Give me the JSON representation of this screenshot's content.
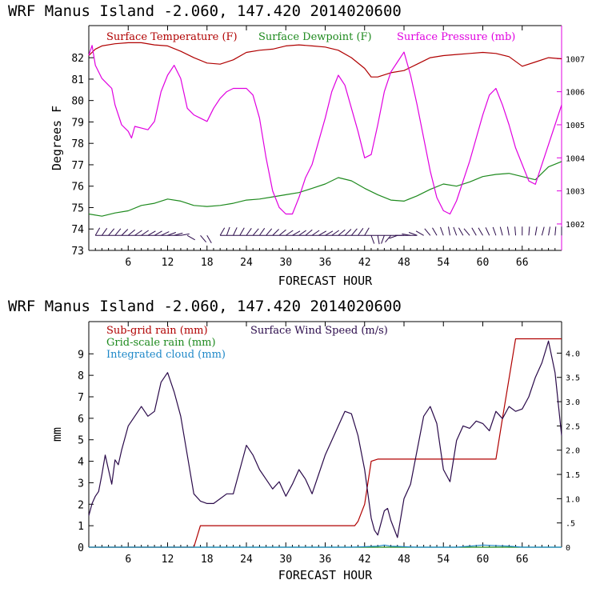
{
  "chart_data": [
    {
      "type": "line",
      "title": "WRF   Manus Island  -2.060, 147.420  2014020600",
      "xlabel": "FORECAST HOUR",
      "ylabel": "Degrees F",
      "xlim": [
        0,
        72
      ],
      "xticks": [
        6,
        12,
        18,
        24,
        30,
        36,
        42,
        48,
        54,
        60,
        66
      ],
      "ylim": [
        73,
        83.5
      ],
      "yticks": [
        73,
        74,
        75,
        76,
        77,
        78,
        79,
        80,
        81,
        82
      ],
      "y2lim": [
        1001.2,
        1008.0
      ],
      "y2ticks": [
        1002,
        1003,
        1004,
        1005,
        1006,
        1007
      ],
      "colors": {
        "temperature": "#b00000",
        "dewpoint": "#1e8a1e",
        "pressure": "#e000e0",
        "wind": "#2a0a4a"
      },
      "series": [
        {
          "name": "Surface Temperature (F)",
          "axis": "left",
          "x": [
            0,
            1,
            2,
            4,
            6,
            8,
            10,
            12,
            14,
            16,
            18,
            20,
            22,
            24,
            26,
            28,
            30,
            32,
            34,
            36,
            38,
            40,
            42,
            43,
            44,
            46,
            48,
            50,
            52,
            54,
            56,
            58,
            60,
            62,
            64,
            66,
            68,
            70,
            72
          ],
          "y": [
            82.1,
            82.4,
            82.55,
            82.65,
            82.7,
            82.7,
            82.6,
            82.55,
            82.3,
            82.0,
            81.75,
            81.7,
            81.9,
            82.25,
            82.35,
            82.4,
            82.55,
            82.6,
            82.55,
            82.5,
            82.35,
            82.0,
            81.5,
            81.1,
            81.1,
            81.3,
            81.4,
            81.7,
            82.0,
            82.1,
            82.15,
            82.2,
            82.25,
            82.2,
            82.05,
            81.6,
            81.8,
            82.0,
            81.95
          ]
        },
        {
          "name": "Surface Dewpoint (F)",
          "axis": "left",
          "x": [
            0,
            2,
            4,
            6,
            8,
            10,
            12,
            14,
            16,
            18,
            20,
            22,
            24,
            26,
            28,
            30,
            32,
            34,
            36,
            38,
            40,
            42,
            44,
            46,
            48,
            50,
            52,
            54,
            56,
            58,
            60,
            62,
            64,
            66,
            68,
            70,
            72
          ],
          "y": [
            74.7,
            74.6,
            74.75,
            74.85,
            75.1,
            75.2,
            75.4,
            75.3,
            75.1,
            75.05,
            75.1,
            75.2,
            75.35,
            75.4,
            75.5,
            75.6,
            75.7,
            75.9,
            76.1,
            76.4,
            76.25,
            75.9,
            75.6,
            75.35,
            75.3,
            75.55,
            75.85,
            76.1,
            76.0,
            76.2,
            76.45,
            76.55,
            76.6,
            76.45,
            76.3,
            76.9,
            77.15
          ]
        },
        {
          "name": "Surface Pressure (mb)",
          "axis": "right",
          "x": [
            0,
            0.5,
            1,
            2,
            3,
            3.5,
            4,
            5,
            6,
            6.5,
            7,
            8,
            9,
            10,
            11,
            12,
            13,
            14,
            15,
            16,
            17,
            18,
            19,
            20,
            21,
            22,
            24,
            25,
            26,
            27,
            28,
            29,
            30,
            31,
            32,
            33,
            34,
            35,
            36,
            37,
            38,
            39,
            40,
            41,
            42,
            43,
            44,
            45,
            46,
            47,
            48,
            49,
            50,
            51,
            52,
            53,
            54,
            55,
            56,
            57,
            58,
            59,
            60,
            61,
            62,
            63,
            64,
            65,
            66,
            67,
            68,
            69,
            70,
            71,
            72
          ],
          "y": [
            1007.1,
            1007.4,
            1006.8,
            1006.4,
            1006.2,
            1006.1,
            1005.6,
            1005.0,
            1004.8,
            1004.6,
            1004.95,
            1004.9,
            1004.85,
            1005.1,
            1006.0,
            1006.5,
            1006.8,
            1006.4,
            1005.5,
            1005.3,
            1005.2,
            1005.1,
            1005.5,
            1005.8,
            1006.0,
            1006.1,
            1006.1,
            1005.9,
            1005.2,
            1004.0,
            1003.0,
            1002.5,
            1002.3,
            1002.3,
            1002.8,
            1003.4,
            1003.8,
            1004.5,
            1005.2,
            1006.0,
            1006.5,
            1006.2,
            1005.5,
            1004.8,
            1004.0,
            1004.1,
            1005.0,
            1006.0,
            1006.6,
            1006.9,
            1007.2,
            1006.5,
            1005.6,
            1004.6,
            1003.6,
            1002.8,
            1002.4,
            1002.3,
            1002.7,
            1003.3,
            1003.9,
            1004.6,
            1005.3,
            1005.9,
            1006.1,
            1005.6,
            1005.0,
            1004.3,
            1003.8,
            1003.3,
            1003.2,
            1003.8,
            1004.4,
            1005.0,
            1005.6
          ]
        }
      ],
      "wind_barbs": {
        "x": [
          1,
          2,
          3,
          4,
          5,
          6,
          7,
          8,
          9,
          10,
          11,
          12,
          13,
          14,
          15,
          17,
          18,
          20,
          21,
          22,
          23,
          24,
          25,
          26,
          27,
          28,
          29,
          30,
          31,
          32,
          33,
          34,
          35,
          36,
          37,
          38,
          39,
          40,
          41,
          42,
          43,
          44,
          45,
          46,
          47,
          48,
          49,
          50,
          51,
          52,
          53,
          54,
          55,
          56,
          57,
          58,
          59,
          60,
          61,
          62,
          63,
          64,
          65,
          66,
          67,
          68,
          69,
          70,
          71,
          72
        ],
        "dir": [
          30,
          35,
          40,
          40,
          45,
          50,
          55,
          55,
          60,
          60,
          65,
          70,
          75,
          80,
          120,
          140,
          150,
          30,
          20,
          25,
          30,
          35,
          40,
          35,
          40,
          45,
          50,
          55,
          60,
          55,
          50,
          55,
          60,
          60,
          55,
          50,
          45,
          40,
          35,
          30,
          160,
          170,
          200,
          220,
          250,
          270,
          280,
          290,
          300,
          320,
          330,
          340,
          350,
          340,
          330,
          320,
          330,
          330,
          335,
          340,
          345,
          350,
          355,
          0,
          5,
          10,
          15,
          10,
          5,
          0
        ]
      }
    },
    {
      "type": "line",
      "title": "WRF   Manus Island  -2.060, 147.420  2014020600",
      "xlabel": "FORECAST HOUR",
      "ylabel": "mm",
      "xlim": [
        0,
        72
      ],
      "xticks": [
        6,
        12,
        18,
        24,
        30,
        36,
        42,
        48,
        54,
        60,
        66
      ],
      "ylim": [
        0,
        10.5
      ],
      "yticks": [
        0,
        1,
        2,
        3,
        4,
        5,
        6,
        7,
        8,
        9
      ],
      "y2lim": [
        0,
        4.65
      ],
      "y2ticks": [
        0,
        0.5,
        1.0,
        1.5,
        2.0,
        2.5,
        3.0,
        3.5,
        4.0
      ],
      "y2ticklabels": [
        "0",
        ".5",
        "1.0",
        "1.5",
        "2.0",
        "2.5",
        "3.0",
        "3.5",
        "4.0"
      ],
      "colors": {
        "subgrid": "#b00000",
        "gridscale": "#1e8a1e",
        "cloud": "#1e88c8",
        "wind": "#2a0a4a"
      },
      "series": [
        {
          "name": "Sub-grid rain (mm)",
          "axis": "left",
          "x": [
            0,
            16,
            17,
            40.5,
            41,
            42,
            43,
            44,
            48,
            62,
            63,
            65,
            69,
            70,
            72
          ],
          "y": [
            0,
            0,
            1.0,
            1.0,
            1.2,
            2.0,
            4.0,
            4.1,
            4.1,
            4.1,
            6.0,
            9.7,
            9.7,
            9.7,
            9.7
          ]
        },
        {
          "name": "Grid-scale rain (mm)",
          "axis": "left",
          "x": [
            0,
            72
          ],
          "y": [
            0.0,
            0.0
          ]
        },
        {
          "name": "Integrated cloud (mm)",
          "axis": "left",
          "x": [
            0,
            10,
            20,
            30,
            40,
            44,
            45,
            46,
            50,
            56,
            58,
            60,
            64,
            66,
            72
          ],
          "y": [
            0.0,
            0.0,
            0.0,
            0.0,
            0.0,
            0.05,
            0.1,
            0.05,
            0.0,
            0.0,
            0.05,
            0.1,
            0.05,
            0.0,
            0.0
          ]
        },
        {
          "name": "Surface Wind Speed (m/s)",
          "axis": "right",
          "x": [
            0,
            0.5,
            1,
            1.5,
            2,
            2.5,
            3,
            3.5,
            4,
            4.5,
            5,
            6,
            7,
            8,
            9,
            10,
            11,
            12,
            13,
            14,
            15,
            16,
            17,
            18,
            19,
            20,
            21,
            22,
            23,
            24,
            25,
            26,
            27,
            28,
            29,
            30,
            31,
            32,
            33,
            34,
            35,
            36,
            37,
            38,
            39,
            40,
            41,
            42,
            43,
            43.5,
            44,
            44.5,
            45,
            45.5,
            46,
            47,
            48,
            49,
            50,
            51,
            52,
            53,
            54,
            55,
            56,
            57,
            58,
            59,
            60,
            61,
            62,
            63,
            64,
            65,
            66,
            67,
            68,
            69,
            70,
            71,
            72
          ],
          "y": [
            0.65,
            0.9,
            1.05,
            1.15,
            1.5,
            1.9,
            1.6,
            1.3,
            1.8,
            1.7,
            2.0,
            2.5,
            2.7,
            2.9,
            2.7,
            2.8,
            3.4,
            3.6,
            3.2,
            2.7,
            1.9,
            1.1,
            0.95,
            0.9,
            0.9,
            1.0,
            1.1,
            1.1,
            1.6,
            2.1,
            1.9,
            1.6,
            1.4,
            1.2,
            1.35,
            1.05,
            1.3,
            1.6,
            1.4,
            1.1,
            1.5,
            1.9,
            2.2,
            2.5,
            2.8,
            2.75,
            2.3,
            1.6,
            0.6,
            0.35,
            0.25,
            0.5,
            0.75,
            0.8,
            0.55,
            0.2,
            1.0,
            1.3,
            2.0,
            2.7,
            2.9,
            2.55,
            1.6,
            1.35,
            2.2,
            2.5,
            2.45,
            2.6,
            2.55,
            2.4,
            2.8,
            2.65,
            2.9,
            2.8,
            2.85,
            3.1,
            3.5,
            3.8,
            4.25,
            3.6,
            2.3
          ]
        }
      ]
    }
  ]
}
